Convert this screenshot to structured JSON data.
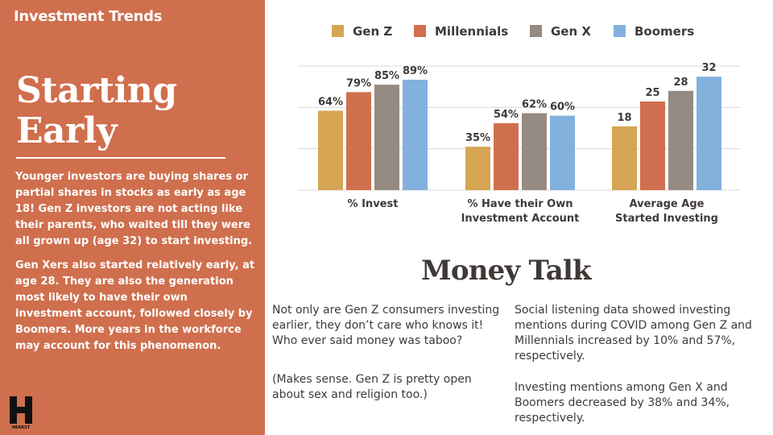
{
  "sidebar": {
    "section_label": "Investment Trends",
    "headline": "Starting Early",
    "paragraphs": [
      "Younger investors are buying shares or partial shares in stocks as early as age 18! Gen Z investors are not acting like their parents, who waited till they were all grown up (age 32) to start investing.",
      "Gen Xers also started relatively early, at age 28. They are also the generation most likely to have their own investment account, followed closely by Boomers. More years in the workforce may account for this phenomenon."
    ],
    "logo_text": "HEARST"
  },
  "money_talk": {
    "title": "Money Talk",
    "left": [
      "Not only are Gen Z consumers investing earlier, they don’t care who knows it! Who ever said money was taboo?",
      "(Makes sense. Gen Z is pretty open about sex and religion too.)"
    ],
    "right": [
      "Social listening data showed investing mentions during COVID among Gen Z and Millennials increased by 10% and 57%, respectively.",
      "Investing mentions among Gen X and Boomers decreased by 38% and 34%, respectively."
    ]
  },
  "colors": {
    "sidebar": "#cf6f4d",
    "gen_z": "#d6a554",
    "millennials": "#cf6f4d",
    "gen_x": "#968b82",
    "boomers": "#82b1de",
    "text": "#3f3a37"
  },
  "chart_data": {
    "type": "bar",
    "title": "",
    "legend_position": "top",
    "grid": true,
    "categories": [
      "% Invest",
      "% Have their Own Investment Account",
      "Average Age Started Investing"
    ],
    "category_label_lines": [
      [
        "% Invest"
      ],
      [
        "% Have their Own",
        "Investment Account"
      ],
      [
        "Average Age",
        "Started Investing"
      ]
    ],
    "series": [
      {
        "name": "Gen Z",
        "values": [
          64,
          35,
          18
        ],
        "labels": [
          "64%",
          "35%",
          "18"
        ]
      },
      {
        "name": "Millennials",
        "values": [
          79,
          54,
          25
        ],
        "labels": [
          "79%",
          "54%",
          "25"
        ]
      },
      {
        "name": "Gen X",
        "values": [
          85,
          62,
          28
        ],
        "labels": [
          "85%",
          "62%",
          "28"
        ]
      },
      {
        "name": "Boomers",
        "values": [
          89,
          60,
          32
        ],
        "labels": [
          "89%",
          "60%",
          "32"
        ]
      }
    ],
    "group_scales": [
      100,
      100,
      35
    ],
    "series_colors": [
      "#d6a554",
      "#cf6f4d",
      "#968b82",
      "#82b1de"
    ]
  }
}
